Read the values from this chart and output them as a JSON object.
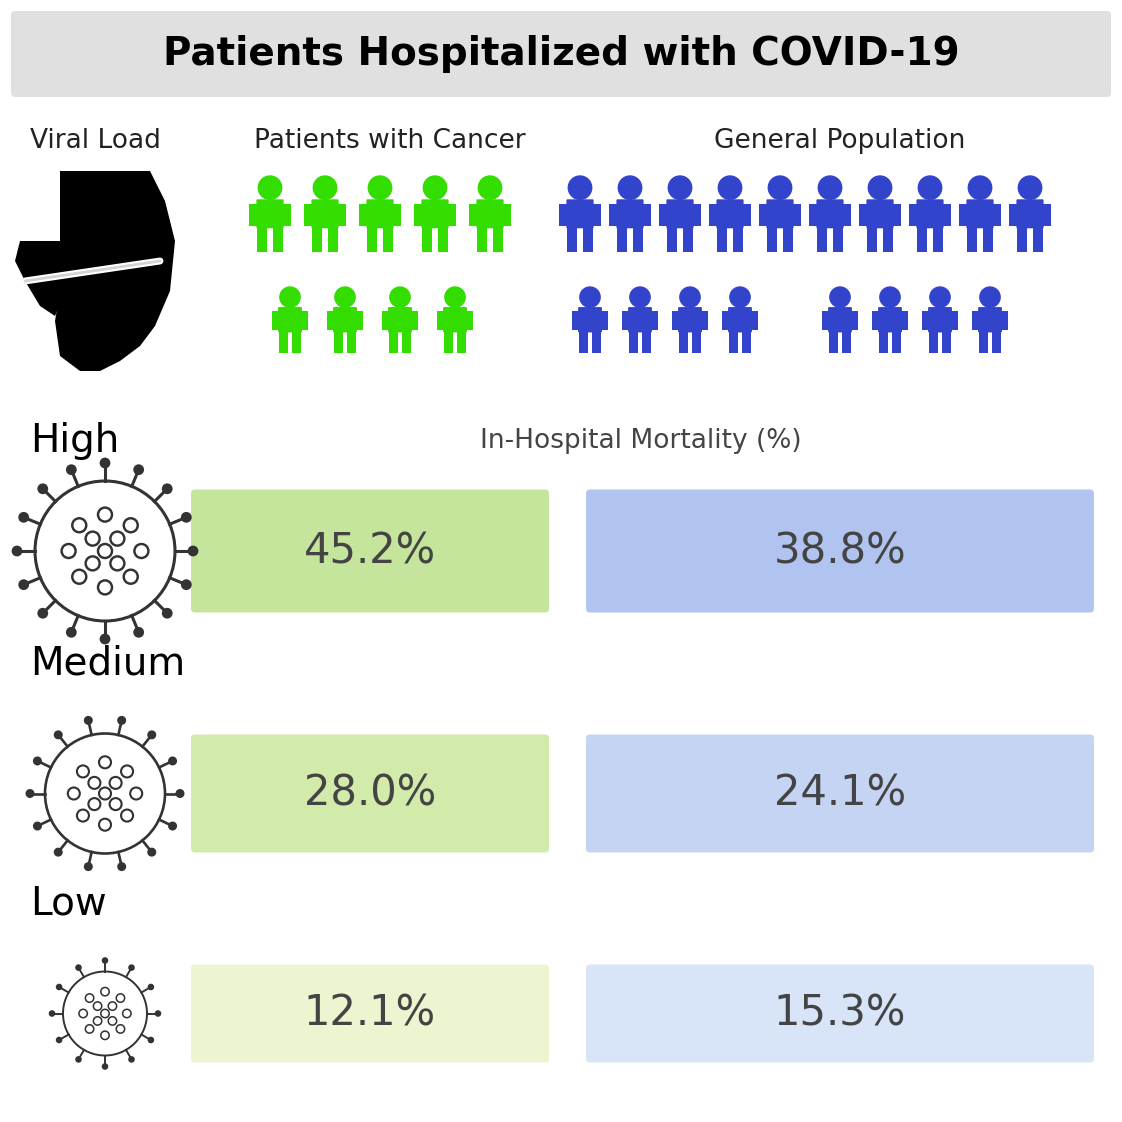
{
  "title": "Patients Hospitalized with COVID-19",
  "title_fontsize": 28,
  "title_bg_color": "#e0e0e0",
  "bg_color": "#ffffff",
  "col_labels": [
    "Viral Load",
    "Patients with Cancer",
    "General Population"
  ],
  "col_label_fontsize": 19,
  "col_label_color": "#222222",
  "mortality_label": "In-Hospital Mortality (%)",
  "mortality_fontsize": 19,
  "levels": [
    "High",
    "Medium",
    "Low"
  ],
  "level_fontsize": 28,
  "cancer_values": [
    "45.2%",
    "28.0%",
    "12.1%"
  ],
  "general_values": [
    "38.8%",
    "24.1%",
    "15.3%"
  ],
  "value_fontsize": 30,
  "cancer_box_colors": [
    "#c5e49c",
    "#d2eaaa",
    "#edf5d0"
  ],
  "general_box_colors": [
    "#b0c4ef",
    "#c4d4f2",
    "#d8e4f7"
  ],
  "cancer_person_color": "#33dd00",
  "general_person_color": "#3344cc",
  "text_color": "#444444",
  "virus_color": "#333333"
}
